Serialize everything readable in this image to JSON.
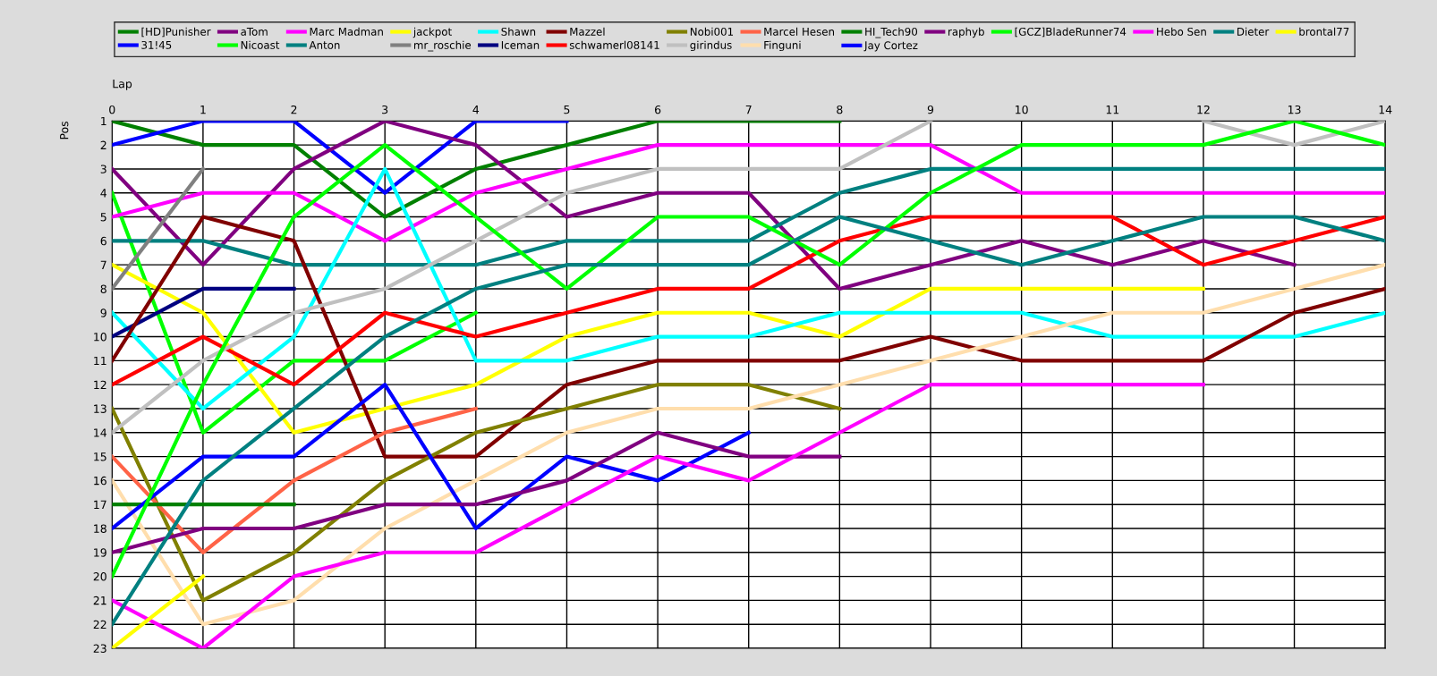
{
  "chart_data": {
    "type": "line",
    "xlabel": "Lap",
    "ylabel": "Pos",
    "x": [
      0,
      1,
      2,
      3,
      4,
      5,
      6,
      7,
      8,
      9,
      10,
      11,
      12,
      13,
      14
    ],
    "xlim": [
      0,
      14
    ],
    "xticks": [
      0,
      1,
      2,
      3,
      4,
      5,
      6,
      7,
      8,
      9,
      10,
      11,
      12,
      13,
      14
    ],
    "ylim": [
      23,
      1
    ],
    "yticks": [
      1,
      2,
      3,
      4,
      5,
      6,
      7,
      8,
      9,
      10,
      11,
      12,
      13,
      14,
      15,
      16,
      17,
      18,
      19,
      20,
      21,
      22,
      23
    ],
    "grid": true,
    "legend": "top",
    "marker": "none",
    "line_style": "solid",
    "series": [
      {
        "name": "[HD]Punisher",
        "color": "#008000",
        "values": [
          1,
          2,
          2,
          5,
          3,
          2,
          1,
          1,
          1,
          null,
          null,
          null,
          null,
          null,
          null
        ]
      },
      {
        "name": "31!45",
        "color": "#0000ff",
        "values": [
          2,
          1,
          1,
          4,
          1,
          1,
          null,
          null,
          null,
          null,
          null,
          null,
          null,
          null,
          null
        ]
      },
      {
        "name": "aTom",
        "color": "#800080",
        "values": [
          3,
          7,
          3,
          1,
          2,
          5,
          4,
          4,
          8,
          7,
          6,
          7,
          6,
          7,
          null
        ]
      },
      {
        "name": "Nicoast",
        "color": "#00ff00",
        "values": [
          4,
          14,
          11,
          11,
          9,
          null,
          null,
          null,
          null,
          null,
          null,
          null,
          null,
          null,
          null
        ]
      },
      {
        "name": "Marc Madman",
        "color": "#ff00ff",
        "values": [
          5,
          4,
          4,
          6,
          4,
          3,
          2,
          2,
          2,
          2,
          4,
          4,
          4,
          4,
          4
        ]
      },
      {
        "name": "Anton",
        "color": "#008080",
        "values": [
          6,
          6,
          7,
          7,
          7,
          6,
          6,
          6,
          4,
          3,
          3,
          3,
          3,
          3,
          3
        ]
      },
      {
        "name": "jackpot",
        "color": "#ffff00",
        "values": [
          7,
          9,
          14,
          13,
          12,
          10,
          9,
          9,
          10,
          8,
          8,
          8,
          8,
          null,
          null
        ]
      },
      {
        "name": "mr_roschie",
        "color": "#808080",
        "values": [
          8,
          3,
          null,
          null,
          null,
          null,
          null,
          null,
          null,
          null,
          null,
          null,
          null,
          null,
          null
        ]
      },
      {
        "name": "Shawn",
        "color": "#00ffff",
        "values": [
          9,
          13,
          10,
          3,
          11,
          11,
          10,
          10,
          9,
          9,
          9,
          10,
          10,
          10,
          9
        ]
      },
      {
        "name": "Iceman",
        "color": "#000080",
        "values": [
          10,
          8,
          8,
          null,
          null,
          null,
          null,
          null,
          null,
          null,
          null,
          null,
          null,
          null,
          null
        ]
      },
      {
        "name": "Mazzel",
        "color": "#800000",
        "values": [
          11,
          5,
          6,
          15,
          15,
          12,
          11,
          11,
          11,
          10,
          11,
          11,
          11,
          9,
          8
        ]
      },
      {
        "name": "schwamerl08141",
        "color": "#ff0000",
        "values": [
          12,
          10,
          12,
          9,
          10,
          9,
          8,
          8,
          6,
          5,
          5,
          5,
          7,
          6,
          5
        ]
      },
      {
        "name": "Nobi001",
        "color": "#808000",
        "values": [
          13,
          21,
          19,
          16,
          14,
          13,
          12,
          12,
          13,
          null,
          null,
          null,
          null,
          null,
          null
        ]
      },
      {
        "name": "girindus",
        "color": "#c0c0c0",
        "values": [
          14,
          11,
          9,
          8,
          6,
          4,
          3,
          3,
          3,
          1,
          null,
          null,
          1,
          2,
          1
        ]
      },
      {
        "name": "Marcel Hesen",
        "color": "#ff6347",
        "values": [
          15,
          19,
          16,
          14,
          13,
          null,
          null,
          null,
          null,
          null,
          null,
          null,
          null,
          null,
          null
        ]
      },
      {
        "name": "Finguni",
        "color": "#ffdead",
        "values": [
          16,
          22,
          21,
          18,
          16,
          14,
          13,
          13,
          12,
          11,
          10,
          9,
          9,
          8,
          7
        ]
      },
      {
        "name": "HI_Tech90",
        "color": "#008000",
        "values": [
          17,
          17,
          17,
          null,
          null,
          null,
          null,
          null,
          null,
          null,
          null,
          null,
          null,
          null,
          null
        ]
      },
      {
        "name": "Jay Cortez",
        "color": "#0000ff",
        "values": [
          18,
          15,
          15,
          12,
          18,
          15,
          16,
          14,
          null,
          null,
          null,
          null,
          null,
          null,
          null
        ]
      },
      {
        "name": "raphyb",
        "color": "#800080",
        "values": [
          19,
          18,
          18,
          17,
          17,
          16,
          14,
          15,
          15,
          null,
          null,
          null,
          null,
          null,
          null
        ]
      },
      {
        "name": "[GCZ]BladeRunner74",
        "color": "#00ff00",
        "values": [
          20,
          12,
          5,
          2,
          5,
          8,
          5,
          5,
          7,
          4,
          2,
          2,
          2,
          1,
          2
        ]
      },
      {
        "name": "Hebo Sen",
        "color": "#ff00ff",
        "values": [
          21,
          23,
          20,
          19,
          19,
          17,
          15,
          16,
          14,
          12,
          12,
          12,
          12,
          null,
          null
        ]
      },
      {
        "name": "Dieter",
        "color": "#008080",
        "values": [
          22,
          16,
          13,
          10,
          8,
          7,
          7,
          7,
          5,
          6,
          7,
          6,
          5,
          5,
          6
        ]
      },
      {
        "name": "brontal77",
        "color": "#ffff00",
        "values": [
          23,
          20,
          null,
          null,
          null,
          null,
          null,
          null,
          null,
          null,
          null,
          null,
          null,
          null,
          null
        ]
      }
    ]
  }
}
